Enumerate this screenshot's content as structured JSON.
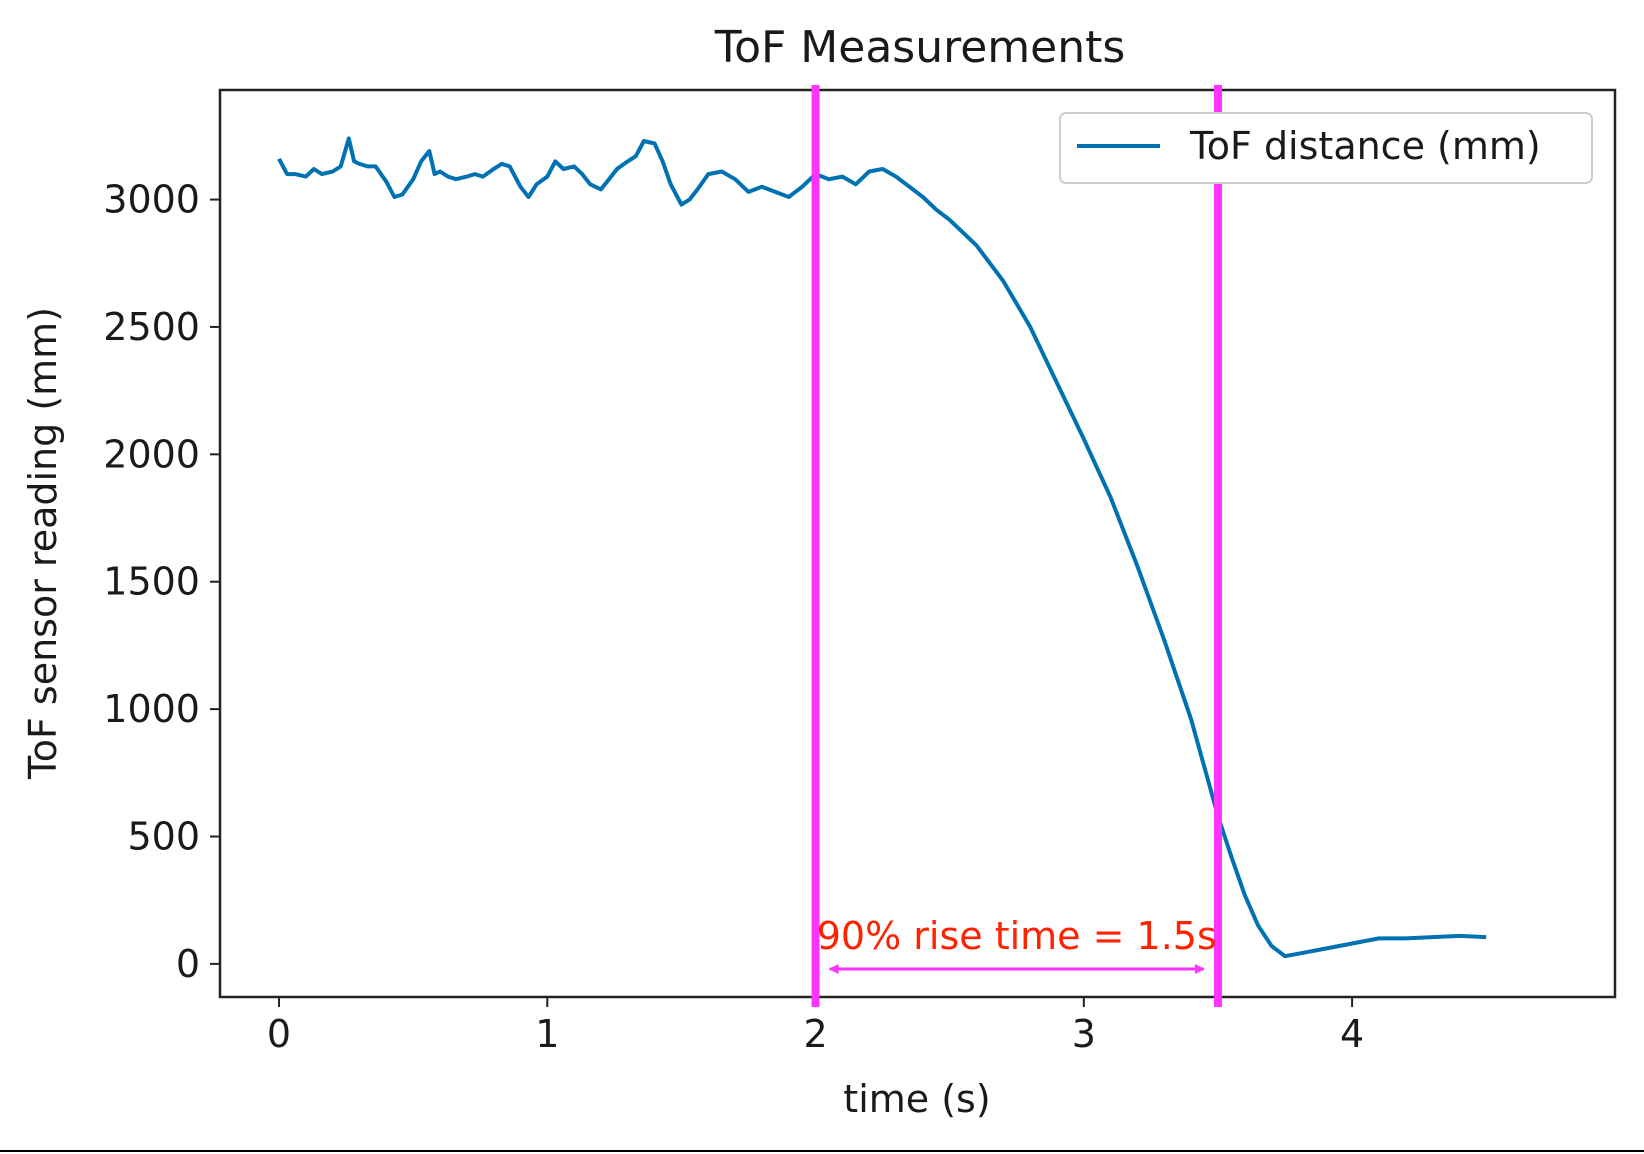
{
  "chart_data": {
    "type": "line",
    "title": "ToF Measurements",
    "xlabel": "time (s)",
    "ylabel": "ToF sensor reading (mm)",
    "xlim": [
      -0.22,
      4.98
    ],
    "ylim": [
      -130,
      3430
    ],
    "x_ticks": [
      0,
      1,
      2,
      3,
      4
    ],
    "x_tick_labels": [
      "0",
      "1",
      "2",
      "3",
      "4"
    ],
    "y_ticks": [
      0,
      500,
      1000,
      1500,
      2000,
      2500,
      3000
    ],
    "y_tick_labels": [
      "0",
      "500",
      "1000",
      "1500",
      "2000",
      "2500",
      "3000"
    ],
    "grid": false,
    "legend_position": "top-right",
    "series": [
      {
        "name": "ToF distance (mm)",
        "color": "#0072b2",
        "x": [
          0,
          0.03,
          0.06,
          0.1,
          0.13,
          0.16,
          0.2,
          0.23,
          0.26,
          0.28,
          0.3,
          0.33,
          0.36,
          0.4,
          0.43,
          0.46,
          0.5,
          0.53,
          0.56,
          0.58,
          0.6,
          0.63,
          0.66,
          0.7,
          0.73,
          0.76,
          0.8,
          0.83,
          0.86,
          0.9,
          0.93,
          0.96,
          1.0,
          1.03,
          1.06,
          1.1,
          1.13,
          1.16,
          1.2,
          1.23,
          1.26,
          1.3,
          1.33,
          1.36,
          1.4,
          1.43,
          1.46,
          1.5,
          1.53,
          1.56,
          1.6,
          1.65,
          1.7,
          1.75,
          1.8,
          1.85,
          1.9,
          1.95,
          2.0,
          2.05,
          2.1,
          2.15,
          2.2,
          2.25,
          2.3,
          2.35,
          2.4,
          2.45,
          2.5,
          2.55,
          2.6,
          2.7,
          2.8,
          2.9,
          3.0,
          3.1,
          3.2,
          3.3,
          3.4,
          3.5,
          3.55,
          3.6,
          3.65,
          3.7,
          3.75,
          3.8,
          3.9,
          4.0,
          4.1,
          4.2,
          4.3,
          4.4,
          4.5
        ],
        "values": [
          3160,
          3100,
          3100,
          3090,
          3120,
          3100,
          3110,
          3130,
          3240,
          3150,
          3140,
          3130,
          3130,
          3070,
          3010,
          3020,
          3080,
          3150,
          3190,
          3100,
          3110,
          3090,
          3080,
          3090,
          3100,
          3090,
          3120,
          3140,
          3130,
          3050,
          3010,
          3060,
          3090,
          3150,
          3120,
          3130,
          3100,
          3060,
          3040,
          3080,
          3120,
          3150,
          3170,
          3230,
          3220,
          3150,
          3060,
          2980,
          3000,
          3040,
          3100,
          3110,
          3080,
          3030,
          3050,
          3030,
          3010,
          3050,
          3100,
          3080,
          3090,
          3060,
          3110,
          3120,
          3090,
          3050,
          3010,
          2960,
          2920,
          2870,
          2820,
          2680,
          2500,
          2280,
          2060,
          1830,
          1560,
          1270,
          960,
          580,
          420,
          270,
          150,
          70,
          30,
          40,
          60,
          80,
          100,
          100,
          105,
          110,
          105
        ]
      }
    ],
    "annotations": {
      "vertical_lines_x": [
        2.0,
        3.5
      ],
      "vertical_line_color": "#ff33ff",
      "arrow": {
        "x_start": 2.0,
        "x_end": 3.5,
        "y": -20,
        "color": "#ff33ff"
      },
      "label": "90% rise time = 1.5s",
      "label_color": "#ff2200"
    }
  }
}
